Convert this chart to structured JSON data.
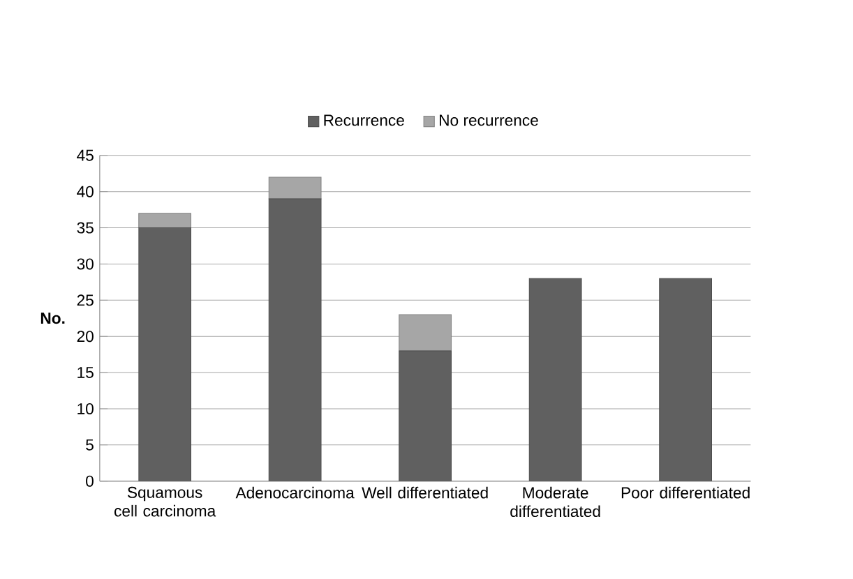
{
  "chart_data": {
    "type": "bar",
    "stacked": true,
    "ylabel": "No.",
    "categories": [
      "Squamous cell carcinoma",
      "Adenocarcinoma",
      "Well differentiated",
      "Moderate differentiated",
      "Poor differentiated"
    ],
    "series": [
      {
        "name": "Recurrence",
        "color": "#606060",
        "values": [
          35,
          39,
          18,
          28,
          28
        ]
      },
      {
        "name": "No recurrence",
        "color": "#a6a6a6",
        "values": [
          2,
          3,
          5,
          0,
          0
        ]
      }
    ],
    "ylim": [
      0,
      45
    ],
    "yticks": [
      0,
      5,
      10,
      15,
      20,
      25,
      30,
      35,
      40,
      45
    ],
    "grid": "y",
    "legend": "top"
  }
}
